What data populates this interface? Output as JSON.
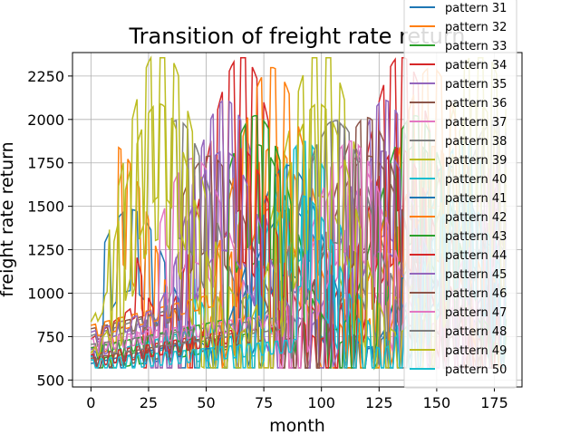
{
  "chart_data": {
    "type": "line",
    "title": "Transition of freight rate return",
    "xlabel": "month",
    "ylabel": "freight rate return",
    "xlim": [
      -8,
      187
    ],
    "ylim": [
      460,
      2385
    ],
    "x_ticks": [
      "0",
      "25",
      "50",
      "75",
      "100",
      "125",
      "150",
      "175"
    ],
    "x_tick_values": [
      0,
      25,
      50,
      75,
      100,
      125,
      150,
      175
    ],
    "y_ticks": [
      "500",
      "750",
      "1000",
      "1250",
      "1500",
      "1750",
      "2000",
      "2250"
    ],
    "y_tick_values": [
      500,
      750,
      1000,
      1250,
      1500,
      1750,
      2000,
      2250
    ],
    "grid": true,
    "legend_placement": "top-right",
    "x_range": [
      0,
      180
    ],
    "y_range_min": 570,
    "y_range_max": 2355,
    "series": [
      {
        "name": "pattern 31",
        "color": "#1f77b4",
        "start": 600,
        "amplitude": 180,
        "period": 6,
        "onset": 6
      },
      {
        "name": "pattern 32",
        "color": "#ff7f0e",
        "start": 620,
        "amplitude": 250,
        "period": 4,
        "onset": 12
      },
      {
        "name": "pattern 33",
        "color": "#2ca02c",
        "start": 580,
        "amplitude": 260,
        "period": 6,
        "onset": 70
      },
      {
        "name": "pattern 34",
        "color": "#d62728",
        "start": 700,
        "amplitude": 340,
        "period": 5,
        "onset": 20
      },
      {
        "name": "pattern 35",
        "color": "#9467bd",
        "start": 640,
        "amplitude": 300,
        "period": 4,
        "onset": 25
      },
      {
        "name": "pattern 36",
        "color": "#8c564b",
        "start": 760,
        "amplitude": 210,
        "period": 5,
        "onset": 40
      },
      {
        "name": "pattern 37",
        "color": "#e377c2",
        "start": 650,
        "amplitude": 230,
        "period": 6,
        "onset": 30
      },
      {
        "name": "pattern 38",
        "color": "#7f7f7f",
        "start": 720,
        "amplitude": 260,
        "period": 5,
        "onset": 35
      },
      {
        "name": "pattern 39",
        "color": "#bcbd22",
        "start": 800,
        "amplitude": 330,
        "period": 6,
        "onset": 8
      },
      {
        "name": "pattern 40",
        "color": "#17becf",
        "start": 600,
        "amplitude": 260,
        "period": 4,
        "onset": 45
      },
      {
        "name": "pattern 41",
        "color": "#1f77b4",
        "start": 560,
        "amplitude": 240,
        "period": 5,
        "onset": 50
      },
      {
        "name": "pattern 42",
        "color": "#ff7f0e",
        "start": 780,
        "amplitude": 310,
        "period": 6,
        "onset": 55
      },
      {
        "name": "pattern 43",
        "color": "#2ca02c",
        "start": 650,
        "amplitude": 280,
        "period": 5,
        "onset": 60
      },
      {
        "name": "pattern 44",
        "color": "#d62728",
        "start": 610,
        "amplitude": 250,
        "period": 4,
        "onset": 65
      },
      {
        "name": "pattern 45",
        "color": "#9467bd",
        "start": 740,
        "amplitude": 220,
        "period": 6,
        "onset": 28
      },
      {
        "name": "pattern 46",
        "color": "#8c564b",
        "start": 590,
        "amplitude": 290,
        "period": 5,
        "onset": 75
      },
      {
        "name": "pattern 47",
        "color": "#e377c2",
        "start": 700,
        "amplitude": 240,
        "period": 4,
        "onset": 80
      },
      {
        "name": "pattern 48",
        "color": "#7f7f7f",
        "start": 670,
        "amplitude": 270,
        "period": 6,
        "onset": 85
      },
      {
        "name": "pattern 49",
        "color": "#bcbd22",
        "start": 620,
        "amplitude": 300,
        "period": 5,
        "onset": 10
      },
      {
        "name": "pattern 50",
        "color": "#17becf",
        "start": 580,
        "amplitude": 200,
        "period": 4,
        "onset": 90
      }
    ]
  }
}
